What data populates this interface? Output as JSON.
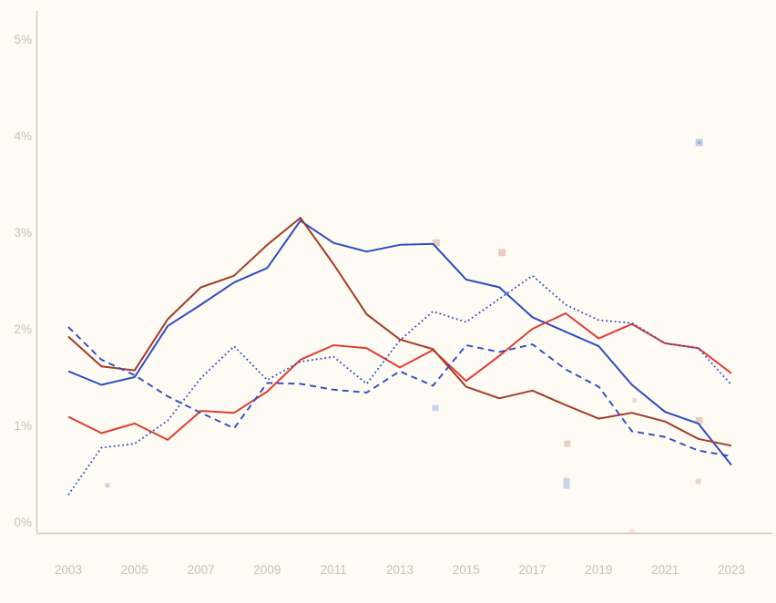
{
  "page": {
    "background_color": "#fdfbf3",
    "axis_color": "#cfc8bb",
    "tick_label_color": "#c9c1b3"
  },
  "chart_data": {
    "type": "line",
    "title": "",
    "xlabel": "",
    "ylabel": "",
    "grid": false,
    "legend": "none",
    "x": [
      2003,
      2004,
      2005,
      2006,
      2007,
      2008,
      2009,
      2010,
      2011,
      2012,
      2013,
      2014,
      2015,
      2016,
      2017,
      2018,
      2019,
      2020,
      2021,
      2022,
      2023
    ],
    "xlim": [
      2002.05,
      2024.3
    ],
    "ylim": [
      -0.11,
      5.4
    ],
    "x_ticks": [
      {
        "label": "2003",
        "value": 2003
      },
      {
        "label": "2005",
        "value": 2005
      },
      {
        "label": "2007",
        "value": 2007
      },
      {
        "label": "2009",
        "value": 2009
      },
      {
        "label": "2011",
        "value": 2011
      },
      {
        "label": "2013",
        "value": 2013
      },
      {
        "label": "2015",
        "value": 2015
      },
      {
        "label": "2017",
        "value": 2017
      },
      {
        "label": "2019",
        "value": 2019
      },
      {
        "label": "2021",
        "value": 2021
      },
      {
        "label": "2023",
        "value": 2023
      }
    ],
    "y_ticks": [
      {
        "label": "0%",
        "value": 0
      },
      {
        "label": "1%",
        "value": 1
      },
      {
        "label": "2%",
        "value": 2
      },
      {
        "label": "3%",
        "value": 3
      },
      {
        "label": "4%",
        "value": 4
      },
      {
        "label": "5%",
        "value": 5
      }
    ],
    "series": [
      {
        "name": "blue-solid",
        "color": "#2d4cc4",
        "style": "solid",
        "width": 2,
        "values": [
          1.56,
          1.42,
          1.5,
          2.03,
          2.25,
          2.48,
          2.63,
          3.12,
          2.89,
          2.8,
          2.87,
          2.88,
          2.51,
          2.43,
          2.12,
          1.97,
          1.82,
          1.42,
          1.14,
          1.02,
          0.59
        ]
      },
      {
        "name": "red-solid",
        "color": "#e23b33",
        "style": "solid",
        "width": 2,
        "values": [
          1.09,
          0.92,
          1.02,
          0.85,
          1.15,
          1.13,
          1.35,
          1.68,
          1.83,
          1.8,
          1.6,
          1.78,
          1.46,
          1.72,
          2.0,
          2.16,
          1.9,
          2.05,
          1.85,
          1.8,
          1.54
        ]
      },
      {
        "name": "dark-red-solid",
        "color": "#a33b26",
        "style": "solid",
        "width": 2,
        "values": [
          1.92,
          1.61,
          1.57,
          2.1,
          2.43,
          2.55,
          2.87,
          3.15,
          2.67,
          2.15,
          1.89,
          1.79,
          1.4,
          1.28,
          1.36,
          1.21,
          1.07,
          1.13,
          1.04,
          0.86,
          0.79
        ]
      },
      {
        "name": "blue-dashed",
        "color": "#2d4cc4",
        "style": "dashed",
        "width": 1.9,
        "values": [
          2.02,
          1.68,
          1.52,
          1.3,
          1.13,
          0.97,
          1.44,
          1.43,
          1.37,
          1.34,
          1.56,
          1.41,
          1.83,
          1.76,
          1.84,
          1.58,
          1.4,
          0.94,
          0.88,
          0.74,
          0.68
        ]
      },
      {
        "name": "blue-dotted",
        "color": "#2d4cc4",
        "style": "dotted",
        "width": 1.8,
        "values": [
          0.28,
          0.77,
          0.81,
          1.05,
          1.49,
          1.82,
          1.47,
          1.66,
          1.71,
          1.43,
          1.88,
          2.18,
          2.07,
          2.31,
          2.55,
          2.25,
          2.09,
          2.06,
          1.85,
          1.8,
          1.42
        ]
      }
    ],
    "scatter": [
      {
        "year": 2004.18,
        "value": 0.38,
        "color": "#c7cee9",
        "w": 5,
        "h": 5,
        "opacity": 0.9
      },
      {
        "year": 2014.1,
        "value": 2.89,
        "color": "#e9c9bd",
        "w": 8,
        "h": 8,
        "opacity": 0.9
      },
      {
        "year": 2014.07,
        "value": 1.18,
        "color": "#c7cee9",
        "w": 7,
        "h": 7,
        "opacity": 0.9
      },
      {
        "year": 2016.08,
        "value": 2.79,
        "color": "#e9c9bd",
        "w": 8,
        "h": 8,
        "opacity": 0.9
      },
      {
        "year": 2018.05,
        "value": 0.81,
        "color": "#e9c9bd",
        "w": 7,
        "h": 7,
        "opacity": 0.9
      },
      {
        "year": 2018.03,
        "value": 0.4,
        "color": "#c7cee9",
        "w": 7,
        "h": 12,
        "opacity": 0.9
      },
      {
        "year": 2020.08,
        "value": 1.26,
        "color": "#c7cee9",
        "w": 5,
        "h": 5,
        "opacity": 0.6
      },
      {
        "year": 2020.0,
        "value": -0.1,
        "color": "#e9c9bd",
        "w": 6,
        "h": 6,
        "opacity": 0.5
      },
      {
        "year": 2022.03,
        "value": 3.93,
        "color": "#c7cee9",
        "w": 8,
        "h": 8,
        "opacity": 1,
        "dot": "#9aa5dc"
      },
      {
        "year": 2022.03,
        "value": 1.05,
        "color": "#e9c9bd",
        "w": 8,
        "h": 8,
        "opacity": 0.9
      },
      {
        "year": 2022.0,
        "value": 0.42,
        "color": "#e9c9bd",
        "w": 6,
        "h": 6,
        "opacity": 0.8
      }
    ]
  }
}
